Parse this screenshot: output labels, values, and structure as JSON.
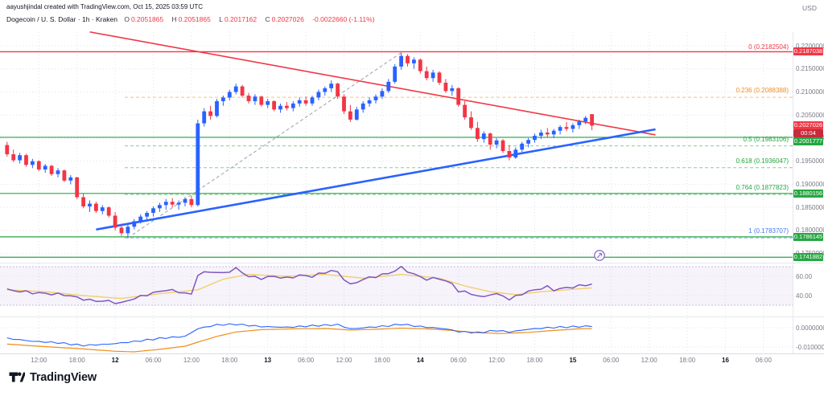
{
  "header": {
    "attribution": "aayushjindal created with TradingView.com, Oct 15, 2025 03:59 UTC",
    "symbol_line": "Dogecoin / U. S. Dollar · 1h · Kraken",
    "ohlc": {
      "o_label": "O",
      "o": "0.2051865",
      "h_label": "H",
      "h": "0.2051865",
      "l_label": "L",
      "l": "0.2017162",
      "c_label": "C",
      "c": "0.2027026",
      "change": "-0.0022660 (-1.11%)"
    }
  },
  "axis": {
    "currency": "USD",
    "price_ticks": [
      "0.2200000",
      "0.2150000",
      "0.2100000",
      "0.2050000",
      "0.2000000",
      "0.1950000",
      "0.1900000",
      "0.1850000",
      "0.1800000",
      "0.1750000"
    ],
    "time_labels": [
      {
        "i": 5,
        "label": "12:00"
      },
      {
        "i": 11,
        "label": "18:00"
      },
      {
        "i": 17,
        "label": "12",
        "bold": true
      },
      {
        "i": 23,
        "label": "06:00"
      },
      {
        "i": 29,
        "label": "12:00"
      },
      {
        "i": 35,
        "label": "18:00"
      },
      {
        "i": 41,
        "label": "13",
        "bold": true
      },
      {
        "i": 47,
        "label": "06:00"
      },
      {
        "i": 53,
        "label": "12:00"
      },
      {
        "i": 59,
        "label": "18:00"
      },
      {
        "i": 65,
        "label": "14",
        "bold": true
      },
      {
        "i": 71,
        "label": "06:00"
      },
      {
        "i": 77,
        "label": "12:00"
      },
      {
        "i": 83,
        "label": "18:00"
      },
      {
        "i": 89,
        "label": "15",
        "bold": true
      },
      {
        "i": 95,
        "label": "06:00"
      },
      {
        "i": 101,
        "label": "12:00"
      },
      {
        "i": 107,
        "label": "18:00"
      },
      {
        "i": 113,
        "label": "16",
        "bold": true
      },
      {
        "i": 119,
        "label": "06:00"
      }
    ]
  },
  "price_labels": {
    "top": {
      "text": "0.2187038",
      "value": 0.2187038
    },
    "current": {
      "text": "0.2027026",
      "value": 0.2027026
    },
    "countdown": "00:04",
    "green": [
      {
        "text": "0.2001777",
        "value": 0.2001777
      },
      {
        "text": "0.1880156",
        "value": 0.1880156
      },
      {
        "text": "0.1786145",
        "value": 0.1786145
      },
      {
        "text": "0.1741882",
        "value": 0.1741882
      }
    ]
  },
  "fib": [
    {
      "text": "0 (0.2182504)",
      "value": 0.2182504,
      "color": "#f23645",
      "line": "none"
    },
    {
      "text": "0.236 (0.2088388)",
      "value": 0.2088388,
      "color": "#ef8f1c",
      "line": "dashed"
    },
    {
      "text": "0.5 (0.1983106)",
      "value": 0.1983106,
      "color": "#26a641",
      "line": "dashed"
    },
    {
      "text": "0.618 (0.1936047)",
      "value": 0.1936047,
      "color": "#26a641",
      "line": "dashed"
    },
    {
      "text": "0.764 (0.1877823)",
      "value": 0.1877823,
      "color": "#26a641",
      "line": "dashed"
    },
    {
      "text": "1 (0.1783707)",
      "value": 0.1783707,
      "color": "#4a77f2",
      "line": "dashed"
    }
  ],
  "colors": {
    "up_candle": "#2962ff",
    "down_candle": "#f23645",
    "green_line": "#26a641",
    "countdown_bg": "#c62b3d",
    "rsi_purple": "#7e57c2",
    "rsi_ma_yellow": "#f3cf6a",
    "mom_blue": "#2962ff",
    "mom_orange": "#ef8f1c",
    "grid": "#dfe3ea",
    "axis_text": "#787b86"
  },
  "footer": {
    "brand": "TradingView"
  },
  "chart_data": {
    "type": "candlestick",
    "symbol": "Dogecoin / U. S. Dollar",
    "exchange": "Kraken",
    "interval": "1h",
    "start_time": "Oct 11 07:00 UTC",
    "step_hours": 1,
    "price_range_visible": [
      0.17337,
      0.22296
    ],
    "candles_ohlc": [
      [
        0.1985,
        0.1992,
        0.196,
        0.1965
      ],
      [
        0.1965,
        0.1975,
        0.1948,
        0.1952
      ],
      [
        0.1952,
        0.1968,
        0.1945,
        0.1963
      ],
      [
        0.1963,
        0.1966,
        0.1938,
        0.1942
      ],
      [
        0.1942,
        0.1955,
        0.1935,
        0.195
      ],
      [
        0.195,
        0.1952,
        0.1928,
        0.1932
      ],
      [
        0.1932,
        0.1944,
        0.1925,
        0.194
      ],
      [
        0.194,
        0.1942,
        0.1918,
        0.1922
      ],
      [
        0.1922,
        0.1935,
        0.1915,
        0.193
      ],
      [
        0.193,
        0.1932,
        0.1905,
        0.1908
      ],
      [
        0.1908,
        0.192,
        0.19,
        0.1915
      ],
      [
        0.1915,
        0.1916,
        0.1868,
        0.1872
      ],
      [
        0.1872,
        0.188,
        0.1848,
        0.1852
      ],
      [
        0.1852,
        0.1865,
        0.184,
        0.1858
      ],
      [
        0.1858,
        0.1862,
        0.1838,
        0.1842
      ],
      [
        0.1842,
        0.1855,
        0.1835,
        0.185
      ],
      [
        0.185,
        0.1852,
        0.1828,
        0.1832
      ],
      [
        0.1832,
        0.184,
        0.18,
        0.1806
      ],
      [
        0.1806,
        0.1815,
        0.1788,
        0.1794
      ],
      [
        0.1794,
        0.1812,
        0.1784,
        0.1808
      ],
      [
        0.1808,
        0.1825,
        0.1802,
        0.182
      ],
      [
        0.182,
        0.1835,
        0.1815,
        0.183
      ],
      [
        0.183,
        0.1842,
        0.1822,
        0.1838
      ],
      [
        0.1838,
        0.1852,
        0.183,
        0.1848
      ],
      [
        0.1848,
        0.186,
        0.184,
        0.1855
      ],
      [
        0.1855,
        0.1868,
        0.1845,
        0.1862
      ],
      [
        0.1862,
        0.187,
        0.185,
        0.1856
      ],
      [
        0.1856,
        0.1865,
        0.1845,
        0.186
      ],
      [
        0.186,
        0.1872,
        0.1852,
        0.1868
      ],
      [
        0.1868,
        0.1875,
        0.185,
        0.1855
      ],
      [
        0.1855,
        0.204,
        0.1852,
        0.2032
      ],
      [
        0.2032,
        0.2065,
        0.2025,
        0.2058
      ],
      [
        0.2058,
        0.207,
        0.204,
        0.2048
      ],
      [
        0.2048,
        0.2085,
        0.2045,
        0.208
      ],
      [
        0.208,
        0.2092,
        0.207,
        0.2088
      ],
      [
        0.2088,
        0.2105,
        0.2082,
        0.21
      ],
      [
        0.21,
        0.2118,
        0.2095,
        0.2112
      ],
      [
        0.2112,
        0.2115,
        0.2088,
        0.2092
      ],
      [
        0.2092,
        0.2098,
        0.2075,
        0.208
      ],
      [
        0.208,
        0.2095,
        0.2072,
        0.209
      ],
      [
        0.209,
        0.2092,
        0.2068,
        0.2072
      ],
      [
        0.2072,
        0.2085,
        0.2065,
        0.208
      ],
      [
        0.208,
        0.2082,
        0.2058,
        0.2062
      ],
      [
        0.2062,
        0.2075,
        0.2055,
        0.207
      ],
      [
        0.207,
        0.2078,
        0.206,
        0.2065
      ],
      [
        0.2065,
        0.208,
        0.2058,
        0.2075
      ],
      [
        0.2075,
        0.2088,
        0.2068,
        0.2082
      ],
      [
        0.2082,
        0.209,
        0.207,
        0.2075
      ],
      [
        0.2075,
        0.2092,
        0.207,
        0.2088
      ],
      [
        0.2088,
        0.2105,
        0.2082,
        0.21
      ],
      [
        0.21,
        0.2112,
        0.2092,
        0.2108
      ],
      [
        0.2108,
        0.2125,
        0.21,
        0.2118
      ],
      [
        0.2118,
        0.212,
        0.2085,
        0.209
      ],
      [
        0.209,
        0.2095,
        0.2052,
        0.2058
      ],
      [
        0.2058,
        0.2072,
        0.2035,
        0.204
      ],
      [
        0.204,
        0.2068,
        0.2038,
        0.2062
      ],
      [
        0.2062,
        0.208,
        0.2055,
        0.2075
      ],
      [
        0.2075,
        0.2088,
        0.2068,
        0.2082
      ],
      [
        0.2082,
        0.2095,
        0.2075,
        0.209
      ],
      [
        0.209,
        0.2108,
        0.2085,
        0.2102
      ],
      [
        0.2102,
        0.2128,
        0.2098,
        0.2122
      ],
      [
        0.2122,
        0.216,
        0.2118,
        0.2155
      ],
      [
        0.2155,
        0.2185,
        0.2148,
        0.2178
      ],
      [
        0.2178,
        0.2182,
        0.2155,
        0.2162
      ],
      [
        0.2162,
        0.2175,
        0.215,
        0.217
      ],
      [
        0.217,
        0.2172,
        0.214,
        0.2145
      ],
      [
        0.2145,
        0.2155,
        0.2125,
        0.213
      ],
      [
        0.213,
        0.2148,
        0.2122,
        0.2142
      ],
      [
        0.2142,
        0.2145,
        0.2115,
        0.212
      ],
      [
        0.212,
        0.2128,
        0.2098,
        0.2102
      ],
      [
        0.2102,
        0.2115,
        0.2092,
        0.2108
      ],
      [
        0.2108,
        0.211,
        0.2068,
        0.2072
      ],
      [
        0.2072,
        0.208,
        0.204,
        0.2045
      ],
      [
        0.2045,
        0.2058,
        0.2018,
        0.2022
      ],
      [
        0.2022,
        0.2035,
        0.1992,
        0.1998
      ],
      [
        0.1998,
        0.2015,
        0.199,
        0.201
      ],
      [
        0.201,
        0.2012,
        0.1975,
        0.1986
      ],
      [
        0.1986,
        0.2,
        0.1978,
        0.1995
      ],
      [
        0.1995,
        0.1998,
        0.1968,
        0.1972
      ],
      [
        0.1972,
        0.1985,
        0.1952,
        0.1958
      ],
      [
        0.1958,
        0.198,
        0.1955,
        0.1975
      ],
      [
        0.1975,
        0.1992,
        0.197,
        0.1988
      ],
      [
        0.1988,
        0.2,
        0.198,
        0.1996
      ],
      [
        0.1996,
        0.201,
        0.199,
        0.2005
      ],
      [
        0.2005,
        0.2018,
        0.1998,
        0.2012
      ],
      [
        0.2012,
        0.2022,
        0.2002,
        0.2008
      ],
      [
        0.2008,
        0.202,
        0.2,
        0.2016
      ],
      [
        0.2016,
        0.2028,
        0.2008,
        0.2024
      ],
      [
        0.2024,
        0.2035,
        0.2015,
        0.202
      ],
      [
        0.202,
        0.2032,
        0.2012,
        0.2028
      ],
      [
        0.2028,
        0.204,
        0.202,
        0.2036
      ],
      [
        0.2036,
        0.2048,
        0.203,
        0.2044
      ],
      [
        0.2051865,
        0.2051865,
        0.2017162,
        0.2027026
      ]
    ],
    "horizontal_lines": [
      0.2187038,
      0.2001777,
      0.1880156,
      0.1786145,
      0.1741882
    ],
    "trendlines": {
      "resistance_red": {
        "from_i": 13,
        "from_p": 0.223,
        "to_i": 102,
        "to_p": 0.2007
      },
      "support_blue": {
        "from_i": 14,
        "from_p": 0.1802,
        "to_i": 102,
        "to_p": 0.2019
      },
      "fib_base_dashed": {
        "from_i": 19,
        "from_p": 0.1784,
        "to_i": 62,
        "to_p": 0.2185
      }
    },
    "indicators": {
      "rsi": {
        "ticks": [
          {
            "v": 60,
            "label": "60.00"
          },
          {
            "v": 40,
            "label": "40.00"
          }
        ],
        "band": [
          30,
          70
        ],
        "purple": [
          [
            0,
            46
          ],
          [
            4,
            43
          ],
          [
            9,
            41
          ],
          [
            13,
            35
          ],
          [
            16,
            34
          ],
          [
            18,
            32
          ],
          [
            19,
            35
          ],
          [
            22,
            41
          ],
          [
            25,
            46
          ],
          [
            27,
            44
          ],
          [
            29,
            41
          ],
          [
            30,
            62
          ],
          [
            32,
            65
          ],
          [
            34,
            63
          ],
          [
            36,
            68
          ],
          [
            38,
            60
          ],
          [
            40,
            58
          ],
          [
            42,
            60
          ],
          [
            44,
            58
          ],
          [
            46,
            61
          ],
          [
            48,
            60
          ],
          [
            51,
            66
          ],
          [
            52,
            64
          ],
          [
            54,
            51
          ],
          [
            56,
            57
          ],
          [
            58,
            60
          ],
          [
            60,
            63
          ],
          [
            62,
            69
          ],
          [
            64,
            62
          ],
          [
            66,
            57
          ],
          [
            68,
            58
          ],
          [
            70,
            52
          ],
          [
            71,
            45
          ],
          [
            73,
            42
          ],
          [
            75,
            38
          ],
          [
            76,
            42
          ],
          [
            78,
            40
          ],
          [
            79,
            36
          ],
          [
            81,
            42
          ],
          [
            83,
            46
          ],
          [
            85,
            49
          ],
          [
            86,
            46
          ],
          [
            88,
            48
          ],
          [
            90,
            50
          ],
          [
            92,
            52
          ]
        ],
        "yellow": [
          [
            0,
            46
          ],
          [
            6,
            44
          ],
          [
            12,
            40
          ],
          [
            18,
            37
          ],
          [
            24,
            42
          ],
          [
            30,
            46
          ],
          [
            34,
            57
          ],
          [
            38,
            62
          ],
          [
            44,
            60
          ],
          [
            50,
            62
          ],
          [
            56,
            58
          ],
          [
            62,
            62
          ],
          [
            68,
            58
          ],
          [
            72,
            50
          ],
          [
            76,
            44
          ],
          [
            80,
            41
          ],
          [
            84,
            44
          ],
          [
            88,
            46
          ],
          [
            92,
            48
          ]
        ]
      },
      "momentum": {
        "ticks": [
          {
            "v": 0,
            "label": "0.0000000"
          },
          {
            "v": -0.01,
            "label": "-0.0100000"
          }
        ],
        "orange": [
          [
            0,
            -0.0085
          ],
          [
            6,
            -0.0098
          ],
          [
            12,
            -0.011
          ],
          [
            17,
            -0.0122
          ],
          [
            20,
            -0.0125
          ],
          [
            24,
            -0.0112
          ],
          [
            28,
            -0.0096
          ],
          [
            30,
            -0.0075
          ],
          [
            33,
            -0.0045
          ],
          [
            36,
            -0.0022
          ],
          [
            40,
            -0.001
          ],
          [
            45,
            -0.0006
          ],
          [
            50,
            -0.0004
          ],
          [
            54,
            -0.0012
          ],
          [
            58,
            -0.0008
          ],
          [
            62,
            -0.0002
          ],
          [
            66,
            -0.0006
          ],
          [
            70,
            -0.0014
          ],
          [
            74,
            -0.0026
          ],
          [
            78,
            -0.003
          ],
          [
            82,
            -0.0024
          ],
          [
            86,
            -0.0014
          ],
          [
            90,
            -0.0006
          ],
          [
            92,
            -0.0004
          ]
        ],
        "blue": [
          [
            0,
            -0.0055
          ],
          [
            4,
            -0.007
          ],
          [
            8,
            -0.0078
          ],
          [
            12,
            -0.0092
          ],
          [
            16,
            -0.0085
          ],
          [
            20,
            -0.0072
          ],
          [
            24,
            -0.0055
          ],
          [
            28,
            -0.0045
          ],
          [
            30,
            -0.0005
          ],
          [
            33,
            0.0015
          ],
          [
            36,
            0.0018
          ],
          [
            40,
            0.0006
          ],
          [
            44,
            0.0002
          ],
          [
            48,
            0.001
          ],
          [
            52,
            0.0016
          ],
          [
            54,
            -0.0006
          ],
          [
            57,
            0.0002
          ],
          [
            60,
            0.001
          ],
          [
            62,
            0.0018
          ],
          [
            65,
            0.0006
          ],
          [
            69,
            -0.0006
          ],
          [
            71,
            -0.002
          ],
          [
            74,
            -0.0026
          ],
          [
            77,
            -0.0014
          ],
          [
            79,
            -0.0022
          ],
          [
            82,
            -0.0008
          ],
          [
            85,
            0
          ],
          [
            88,
            0.0004
          ],
          [
            91,
            0.0007
          ],
          [
            92,
            0.0008
          ]
        ]
      }
    }
  }
}
